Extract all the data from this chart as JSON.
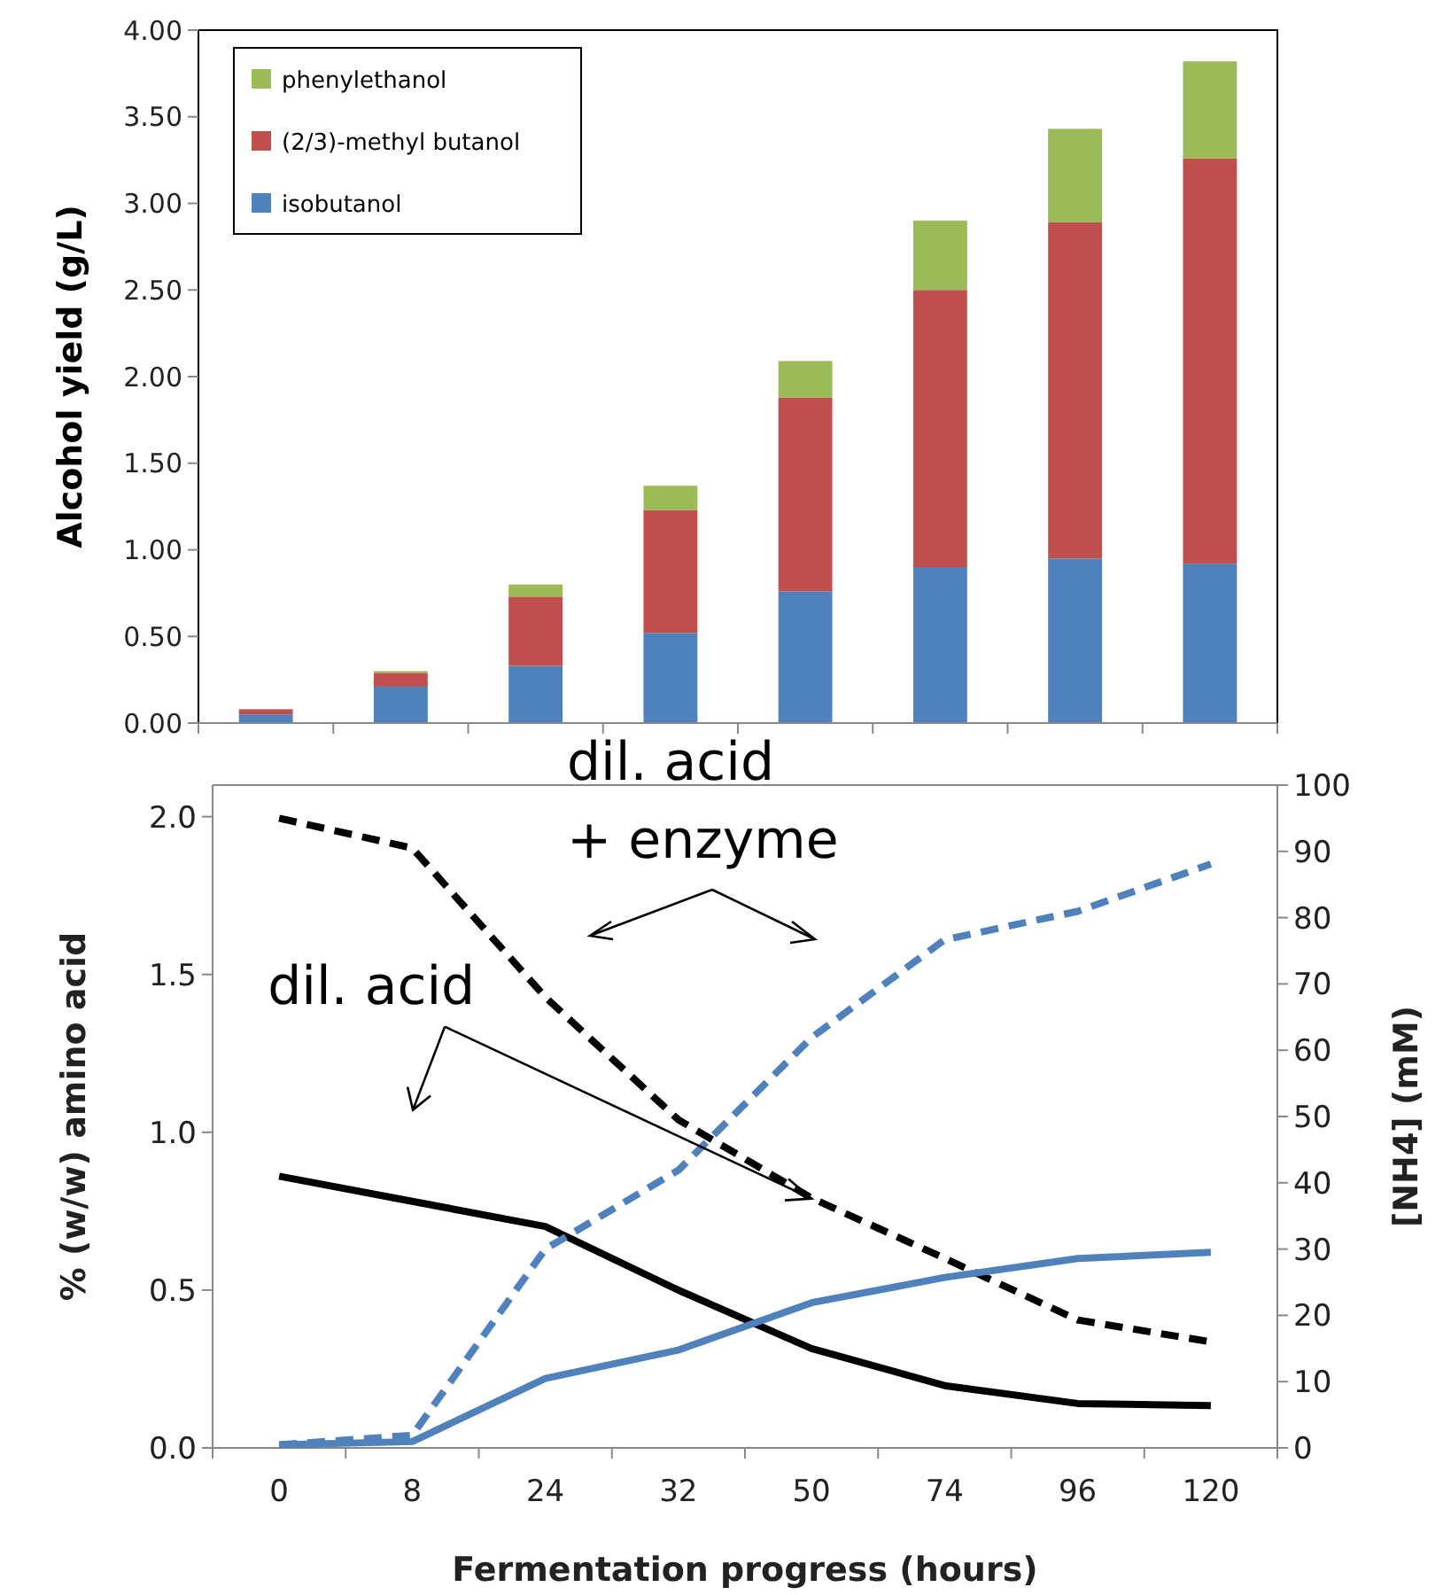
{
  "chart_data": [
    {
      "type": "bar",
      "ylabel": "Alcohol yield (g/L)",
      "stacked": true,
      "categories": [
        null,
        null,
        null,
        null,
        null,
        null,
        null,
        null
      ],
      "ylim": [
        0,
        4
      ],
      "yticks": [
        {
          "value": 0,
          "label": "0.00"
        },
        {
          "value": 0.5,
          "label": "0.50"
        },
        {
          "value": 1,
          "label": "1.00"
        },
        {
          "value": 1.5,
          "label": "1.50"
        },
        {
          "value": 2,
          "label": "2.00"
        },
        {
          "value": 2.5,
          "label": "2.50"
        },
        {
          "value": 3,
          "label": "3.00"
        },
        {
          "value": 3.5,
          "label": "3.50"
        },
        {
          "value": 4,
          "label": "4.00"
        }
      ],
      "tick_labels": "y",
      "legend": "top left",
      "series": [
        {
          "name": "isobutanol",
          "color": "#4f81bd",
          "values": [
            0.05,
            0.21,
            0.33,
            0.52,
            0.76,
            0.9,
            0.95,
            0.92
          ]
        },
        {
          "name": "(2/3)-methyl butanol",
          "color": "#c0504d",
          "values": [
            0.03,
            0.08,
            0.4,
            0.71,
            1.12,
            1.6,
            1.94,
            2.34
          ]
        },
        {
          "name": "phenylethanol",
          "color": "#9bbb59",
          "values": [
            0,
            0.01,
            0.07,
            0.14,
            0.21,
            0.4,
            0.54,
            0.56
          ]
        }
      ]
    },
    {
      "type": "line",
      "xlabel": "Fermentation progress (hours)",
      "ylabel": "% (w/w) amino acid",
      "y2label": "[NH4]  (mM)",
      "categories": [
        "0",
        "8",
        "24",
        "32",
        "50",
        "74",
        "96",
        "120"
      ],
      "ylim": [
        0,
        2.1
      ],
      "yticks": [
        {
          "value": 0,
          "label": "0.0"
        },
        {
          "value": 0.5,
          "label": "0.5"
        },
        {
          "value": 1,
          "label": "1.0"
        },
        {
          "value": 1.5,
          "label": "1.5"
        },
        {
          "value": 2,
          "label": "2.0"
        }
      ],
      "y2lim": [
        0,
        100
      ],
      "y2ticks": [
        0,
        10,
        20,
        30,
        40,
        50,
        60,
        70,
        80,
        90,
        100
      ],
      "marker": "none",
      "annotations": [
        "dil. acid\n+ enzyme",
        {
          "text": "dil. acid",
          "x": "50",
          "y": 0.79
        }
      ],
      "series": [
        {
          "color": "#000000",
          "axis": "y2",
          "line_style": "dashed",
          "values": [
            95,
            90.5,
            68,
            49.5,
            37.7,
            28.6,
            19.3,
            16
          ]
        },
        {
          "color": "#000000",
          "axis": "y2",
          "line_style": "solid",
          "values": [
            41,
            37.2,
            33.4,
            23.8,
            15,
            9.4,
            6.7,
            6.4
          ]
        },
        {
          "color": "#4f81bd",
          "axis": "y",
          "line_style": "dashed",
          "values": [
            0.01,
            0.04,
            0.63,
            0.88,
            1.3,
            1.61,
            1.7,
            1.85
          ]
        },
        {
          "color": "#4f81bd",
          "axis": "y",
          "line_style": "solid",
          "values": [
            0.01,
            0.02,
            0.22,
            0.31,
            0.46,
            0.54,
            0.6,
            0.62
          ]
        }
      ]
    }
  ]
}
